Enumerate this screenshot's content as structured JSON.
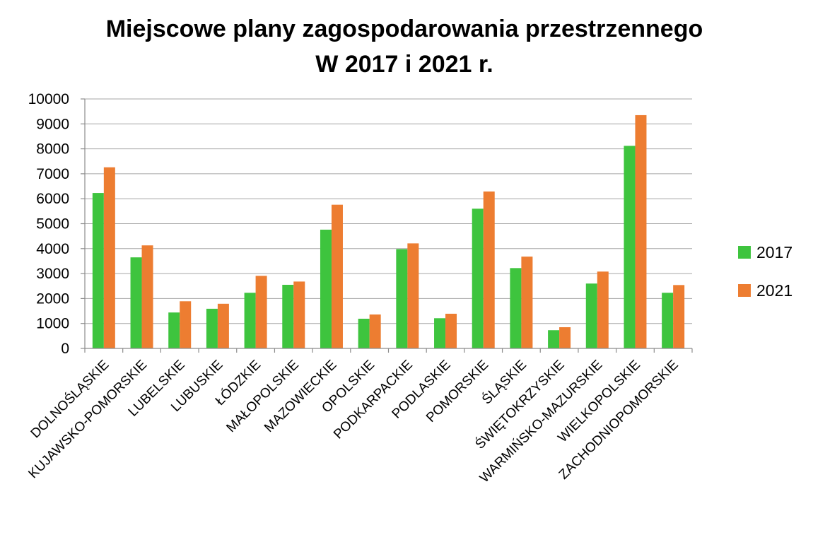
{
  "chart_data": {
    "type": "bar",
    "title": "Miejscowe plany zagospodarowania przestrzennego",
    "subtitle": "W 2017 i 2021 r.",
    "xlabel": "",
    "ylabel": "",
    "ylim": [
      0,
      10000
    ],
    "yticks": [
      0,
      1000,
      2000,
      3000,
      4000,
      5000,
      6000,
      7000,
      8000,
      9000,
      10000
    ],
    "grid": true,
    "legend_position": "right",
    "categories": [
      "DOLNOŚLĄSKIE",
      "KUJAWSKO-POMORSKIE",
      "LUBELSKIE",
      "LUBUSKIE",
      "ŁÓDZKIE",
      "MAŁOPOLSKIE",
      "MAZOWIECKIE",
      "OPOLSKIE",
      "PODKARPACKIE",
      "PODLASKIE",
      "POMORSKIE",
      "ŚLĄSKIE",
      "ŚWIĘTOKRZYSKIE",
      "WARMIŃSKO-MAZURSKIE",
      "WIELKOPOLSKIE",
      "ZACHODNIOPOMORSKIE"
    ],
    "series": [
      {
        "name": "2017",
        "color": "#3ec43e",
        "values": [
          6230,
          3650,
          1440,
          1590,
          2230,
          2550,
          4760,
          1190,
          3980,
          1210,
          5600,
          3220,
          730,
          2600,
          8120,
          2230
        ]
      },
      {
        "name": "2021",
        "color": "#ed7d31",
        "values": [
          7260,
          4130,
          1890,
          1790,
          2910,
          2680,
          5760,
          1360,
          4210,
          1390,
          6290,
          3680,
          850,
          3080,
          9350,
          2540
        ]
      }
    ]
  }
}
